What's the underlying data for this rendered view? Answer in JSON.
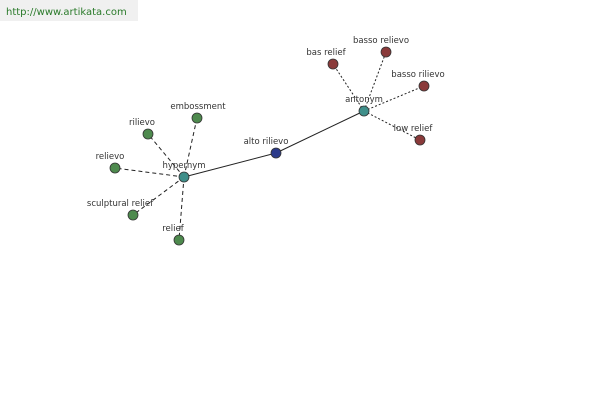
{
  "header": {
    "url": "http://www.artikata.com"
  },
  "nodes": [
    {
      "label": "alto rilievo"
    },
    {
      "label": "hypernym"
    },
    {
      "label": "antonym"
    },
    {
      "label": "embossment"
    },
    {
      "label": "rilievo"
    },
    {
      "label": "relievo"
    },
    {
      "label": "sculptural relief"
    },
    {
      "label": "relief"
    },
    {
      "label": "bas relief"
    },
    {
      "label": "basso relievo"
    },
    {
      "label": "basso rilievo"
    },
    {
      "label": "low relief"
    }
  ]
}
